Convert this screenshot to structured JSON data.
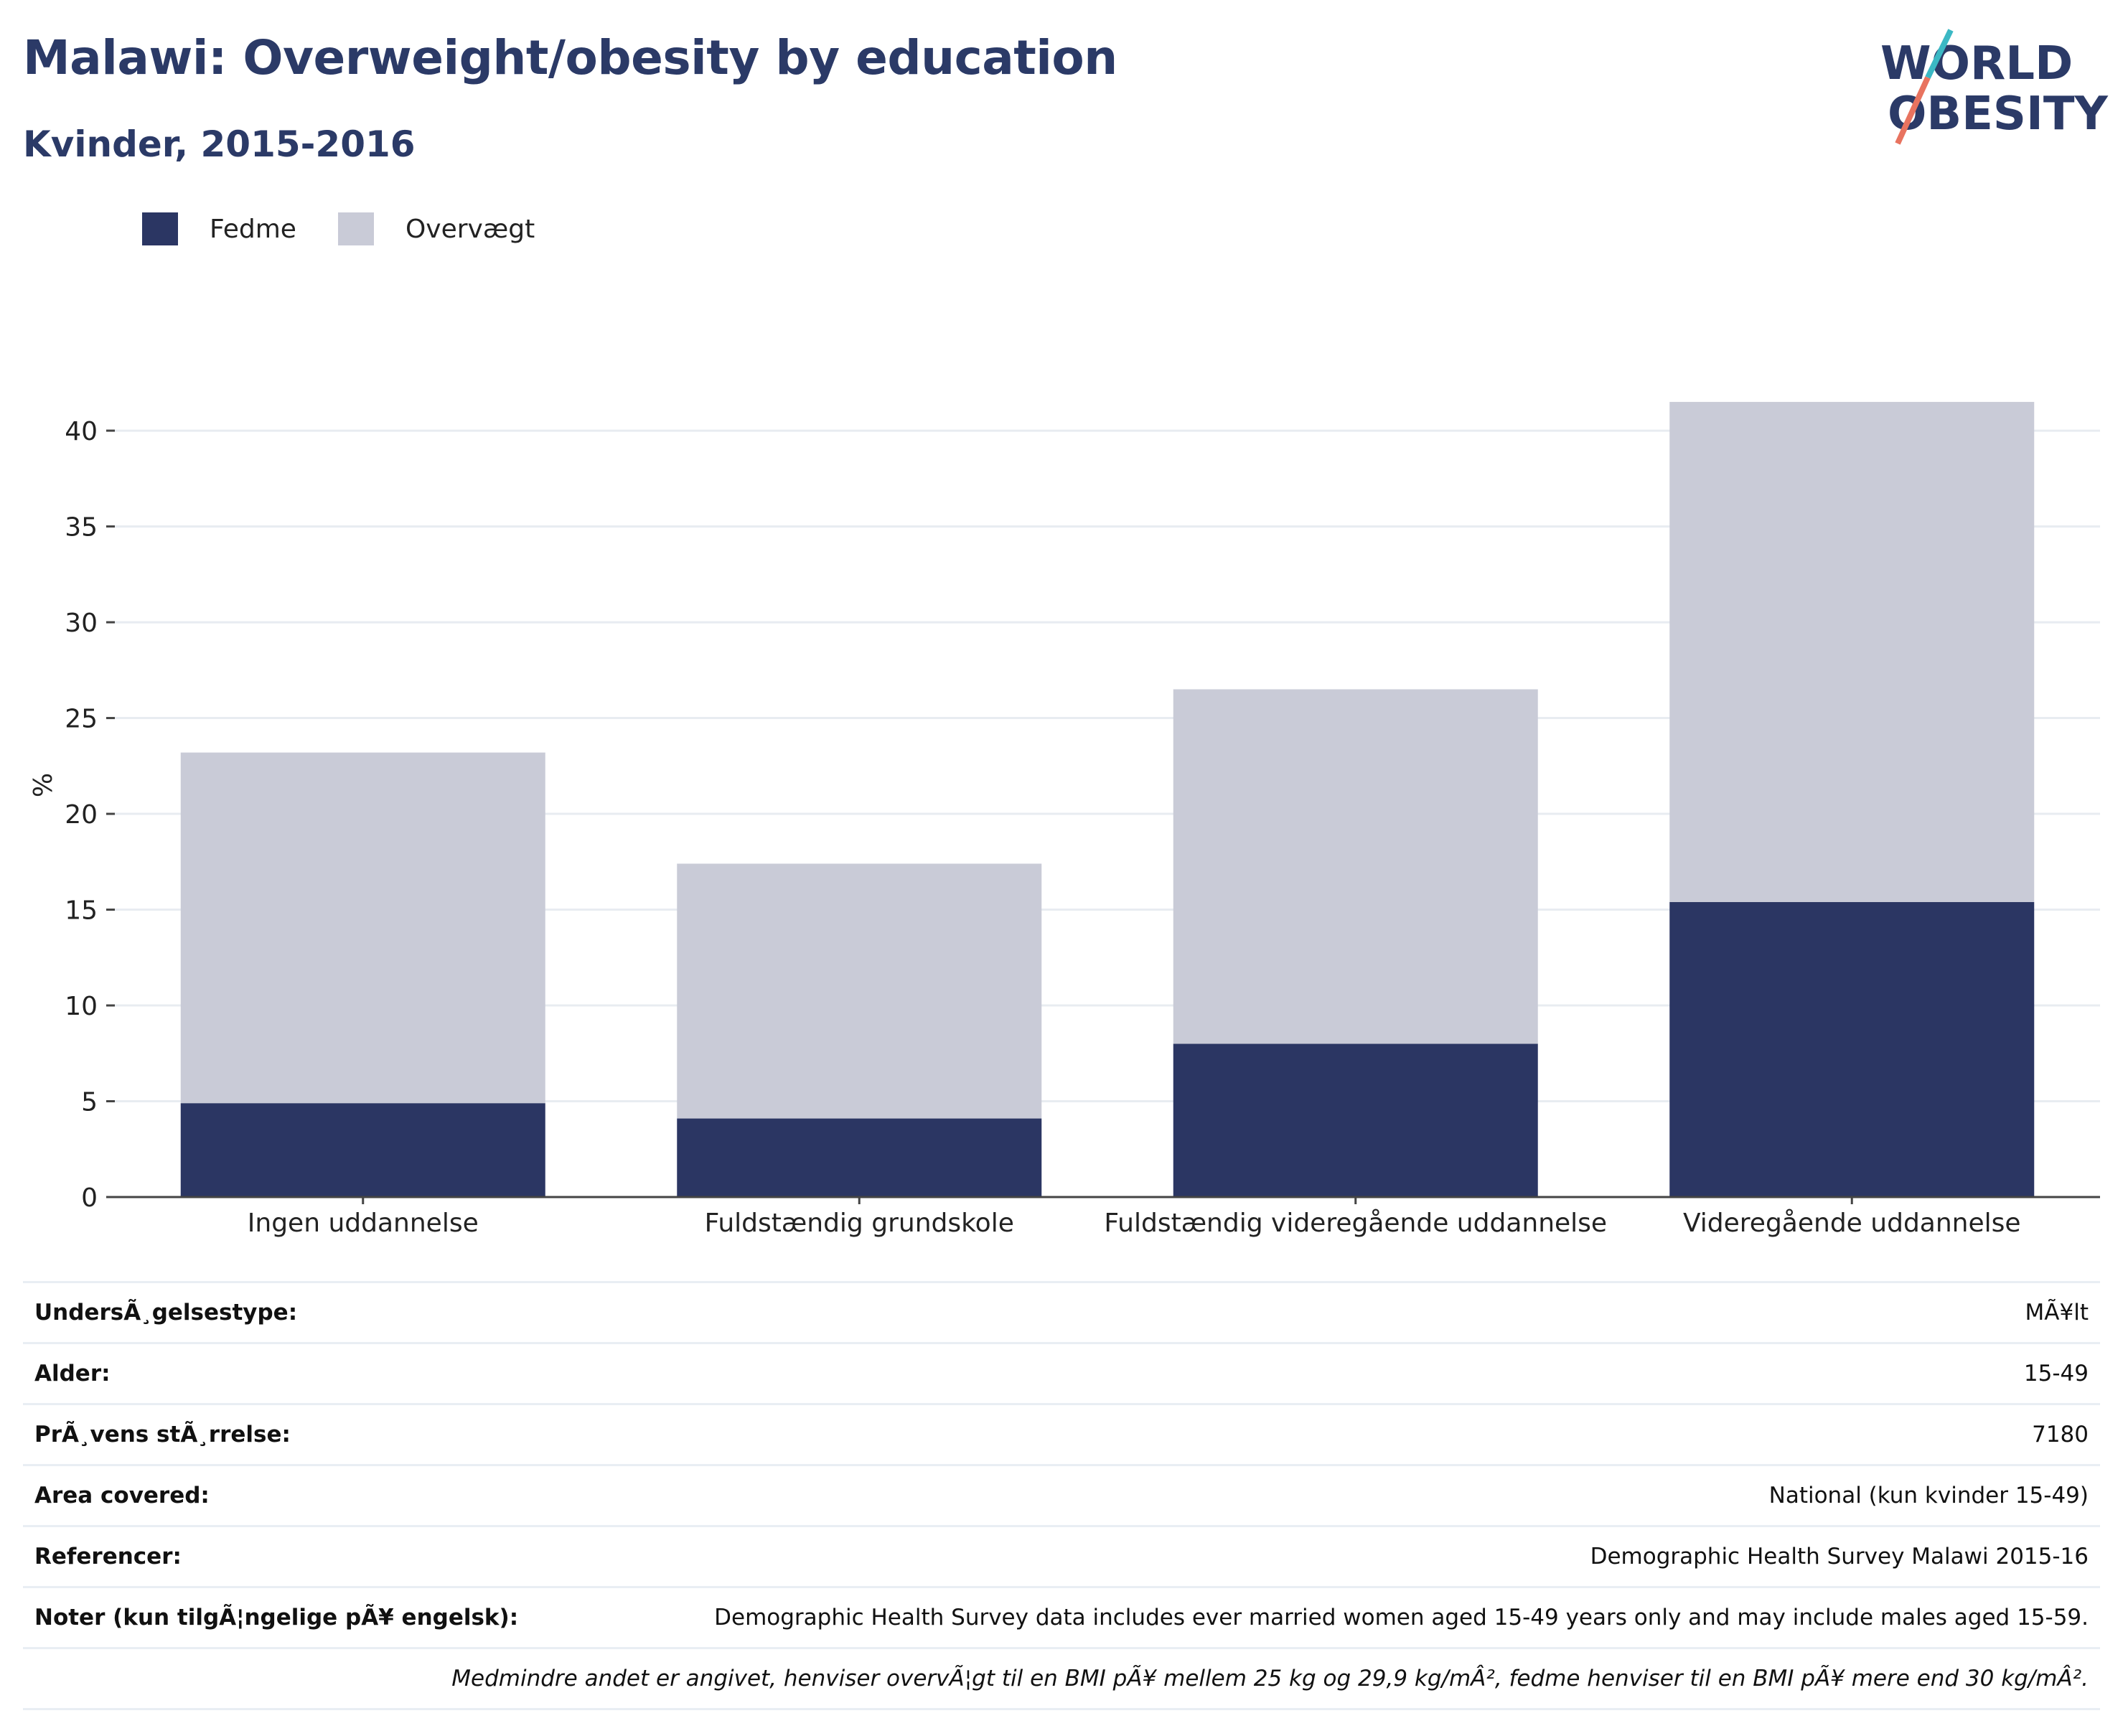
{
  "header": {
    "title": "Malawi: Overweight/obesity by education",
    "subtitle": "Kvinder, 2015-2016"
  },
  "logo": {
    "line1": "WORLD",
    "line2": "OBESITY",
    "accent_colors": [
      "#3bb8c4",
      "#e8735f"
    ]
  },
  "legend": {
    "items": [
      {
        "label": "Fedme",
        "color": "#2b3663"
      },
      {
        "label": "Overvægt",
        "color": "#c9cbd7"
      }
    ]
  },
  "chart_data": {
    "type": "bar",
    "stacked": true,
    "categories": [
      "Ingen uddannelse",
      "Fuldstændig grundskole",
      "Fuldstændig videregående uddannelse",
      "Videregående uddannelse"
    ],
    "series": [
      {
        "name": "Fedme",
        "color": "#2b3663",
        "values": [
          4.9,
          4.1,
          8.0,
          15.4
        ]
      },
      {
        "name": "Overvægt",
        "color": "#c9cbd7",
        "values": [
          18.3,
          13.3,
          18.5,
          26.1
        ]
      }
    ],
    "ylabel": "%",
    "ylim": [
      0,
      43
    ],
    "yticks": [
      0,
      5,
      10,
      15,
      20,
      25,
      30,
      35,
      40
    ],
    "grid": true,
    "legend_position": "top-left"
  },
  "info_table": {
    "rows": [
      {
        "label": "UndersÃ¸gelsestype:",
        "value": "MÃ¥lt"
      },
      {
        "label": "Alder:",
        "value": "15-49"
      },
      {
        "label": "PrÃ¸vens stÃ¸rrelse:",
        "value": "7180"
      },
      {
        "label": "Area covered:",
        "value": "National (kun kvinder 15-49)"
      },
      {
        "label": "Referencer:",
        "value": "Demographic Health Survey Malawi 2015-16"
      },
      {
        "label": "Noter (kun tilgÃ¦ngelige pÃ¥ engelsk):",
        "value": "Demographic Health Survey data includes ever married women aged 15-49 years only and may include males aged 15-59."
      }
    ],
    "footnote": "Medmindre andet er angivet, henviser overvÃ¦gt til en BMI pÃ¥ mellem 25 kg og 29,9 kg/mÂ², fedme henviser til en BMI pÃ¥ mere end 30 kg/mÂ²."
  }
}
